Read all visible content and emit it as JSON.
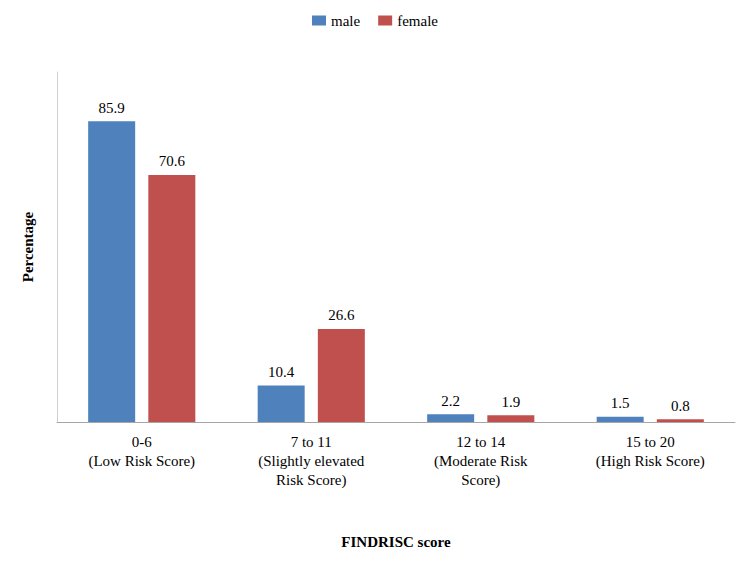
{
  "chart_data": {
    "type": "bar",
    "x_label": "FINDRISC score",
    "y_label": "Percentage",
    "categories": [
      "0-6\n(Low Risk Score)",
      "7 to 11\n(Slightly elevated\nRisk Score)",
      "12 to 14\n(Moderate Risk\nScore)",
      "15 to 20\n(High Risk Score)"
    ],
    "series": [
      {
        "name": "male",
        "color": "#4f81bd",
        "values": [
          85.9,
          10.4,
          2.2,
          1.5
        ]
      },
      {
        "name": "female",
        "color": "#c0504d",
        "values": [
          70.6,
          26.6,
          1.9,
          0.8
        ]
      }
    ],
    "ylim": [
      0,
      100
    ],
    "grid": false,
    "legend": "top",
    "data_labels": true,
    "tick_labels": "x"
  }
}
